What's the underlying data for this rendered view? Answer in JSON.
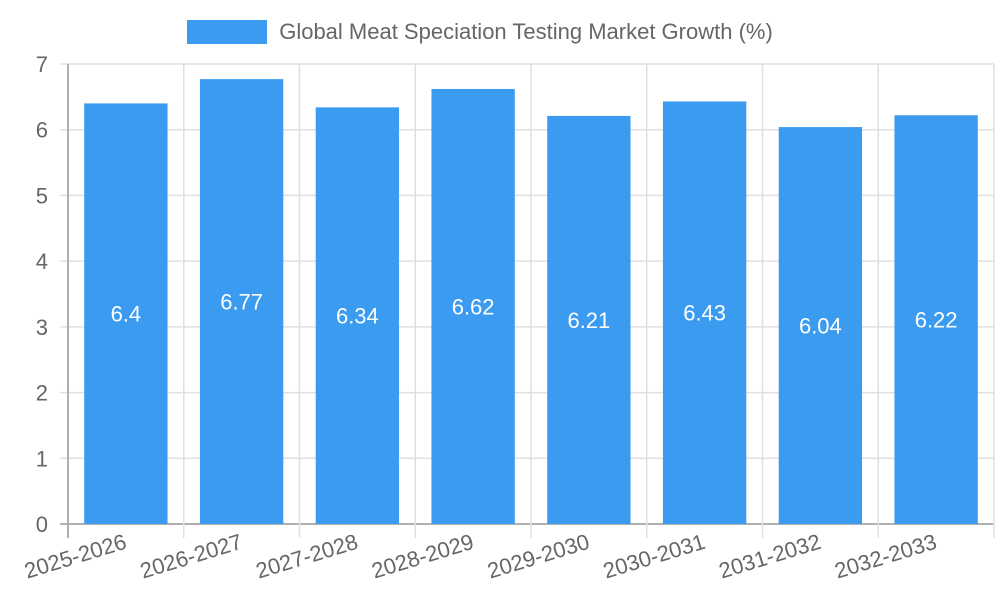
{
  "legend": {
    "label": "Global Meat Speciation Testing Market Growth (%)",
    "color": "#3a9bf0"
  },
  "chart_data": {
    "type": "bar",
    "title": "",
    "categories": [
      "2025-2026",
      "2026-2027",
      "2027-2028",
      "2028-2029",
      "2029-2030",
      "2030-2031",
      "2031-2032",
      "2032-2033"
    ],
    "series": [
      {
        "name": "Global Meat Speciation Testing Market Growth (%)",
        "values": [
          6.4,
          6.77,
          6.34,
          6.62,
          6.21,
          6.43,
          6.04,
          6.22
        ],
        "color": "#3a9bf0"
      }
    ],
    "xlabel": "",
    "ylabel": "",
    "ylim": [
      0,
      7
    ],
    "yticks": [
      0,
      1,
      2,
      3,
      4,
      5,
      6,
      7
    ],
    "grid": true,
    "legend_position": "top",
    "data_labels": true
  }
}
